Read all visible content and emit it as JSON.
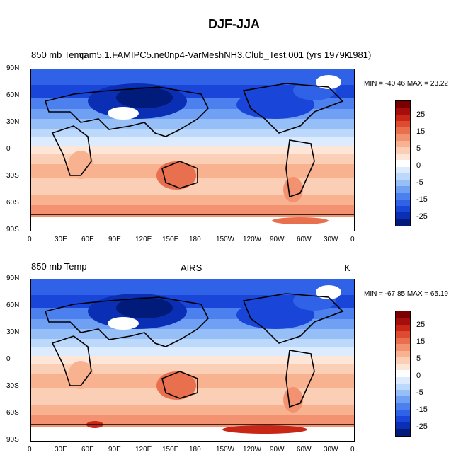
{
  "title": "DJF-JJA",
  "palette": [
    "#001b7a",
    "#0a2fb5",
    "#1945d8",
    "#2f62e6",
    "#4d80ef",
    "#6fa0f4",
    "#96bff8",
    "#bcd8fb",
    "#dcebfd",
    "#ffffff",
    "#fde6d8",
    "#fbcfb5",
    "#f8b28f",
    "#f29270",
    "#e9704f",
    "#dd4b30",
    "#c82718",
    "#a50e0c",
    "#7a0000"
  ],
  "colorbar_labels": [
    "25",
    "15",
    "5",
    "0",
    "-5",
    "-15",
    "-25"
  ],
  "lat_ticks": [
    "90N",
    "60N",
    "30N",
    "0",
    "30S",
    "60S",
    "90S"
  ],
  "lon_ticks": [
    "0",
    "30E",
    "60E",
    "90E",
    "120E",
    "150E",
    "180",
    "150W",
    "120W",
    "90W",
    "60W",
    "30W",
    "0"
  ],
  "panels": [
    {
      "left_label": "850 mb Temp",
      "center_label": "cam5.1.FAMIPC5.ne0np4-VarMeshNH3.Club_Test.001 (yrs 1979-1981)",
      "right_label": "K",
      "min_max": "MIN = -40.46 MAX =  23.22"
    },
    {
      "left_label": "850 mb Temp",
      "center_label": "AIRS",
      "right_label": "K",
      "min_max": "MIN = -67.85 MAX =  65.19"
    }
  ]
}
